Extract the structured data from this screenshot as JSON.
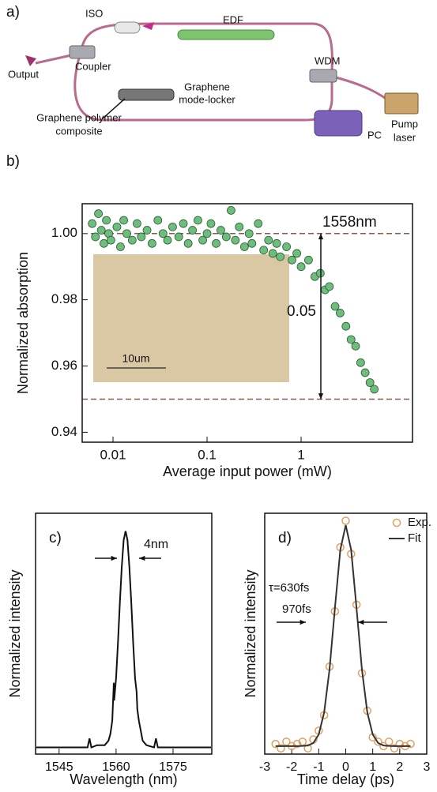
{
  "diagram": {
    "label": "a)",
    "components": [
      "ISO",
      "EDF",
      "Coupler",
      "WDM",
      "Output",
      "Graphene",
      "mode-locker",
      "Graphene polymer",
      "composite",
      "PC",
      "Pump",
      "laser"
    ]
  },
  "chart_data": [
    {
      "type": "scatter",
      "label": "b)",
      "x_label": "Average input power (mW)",
      "y_label": "Normalized absorption",
      "xscale": "log",
      "xlim": [
        0.0047,
        15.3
      ],
      "ylim": [
        0.937,
        1.009
      ],
      "xticks": [
        0.01,
        0.1,
        1
      ],
      "yticks": [
        0.94,
        0.96,
        0.98,
        {
          "value": 1,
          "label": "1.00"
        }
      ],
      "hlines": [
        1,
        0.95
      ],
      "annotations": [
        "1558nm",
        "0.05"
      ],
      "inset_scale": "10um",
      "series": [
        {
          "color": "#6dbd7c",
          "x": [
            0.006,
            0.0065,
            0.007,
            0.0075,
            0.008,
            0.0085,
            0.009,
            0.0095,
            0.011,
            0.012,
            0.013,
            0.014,
            0.016,
            0.018,
            0.02,
            0.023,
            0.026,
            0.03,
            0.034,
            0.038,
            0.043,
            0.05,
            0.056,
            0.063,
            0.07,
            0.08,
            0.09,
            0.1,
            0.11,
            0.125,
            0.14,
            0.16,
            0.18,
            0.2,
            0.22,
            0.25,
            0.28,
            0.3,
            0.35,
            0.4,
            0.45,
            0.5,
            0.55,
            0.6,
            0.7,
            0.8,
            0.9,
            1.0,
            1.2,
            1.4,
            1.6,
            1.8,
            2.0,
            2.3,
            2.6,
            3.0,
            3.4,
            3.8,
            4.3,
            4.8,
            5.4,
            6.0
          ],
          "values": [
            1.003,
            0.999,
            1.006,
            1.001,
            0.997,
            1.004,
            1.0,
            0.998,
            1.002,
            0.996,
            1.004,
            1.0,
            0.998,
            1.003,
            0.999,
            1.001,
            0.997,
            1.004,
            1.0,
            0.998,
            1.002,
            0.999,
            1.003,
            0.997,
            1.001,
            1.004,
            0.998,
            1.0,
            1.003,
            0.997,
            1.001,
            0.999,
            1.007,
            0.998,
            1.002,
            0.996,
            1.0,
            0.997,
            1.003,
            0.995,
            0.998,
            0.994,
            0.997,
            0.993,
            0.996,
            0.992,
            0.994,
            0.99,
            0.992,
            0.987,
            0.988,
            0.983,
            0.984,
            0.978,
            0.976,
            0.972,
            0.968,
            0.966,
            0.961,
            0.958,
            0.955,
            0.953
          ]
        }
      ]
    },
    {
      "type": "line",
      "label": "c)",
      "x_label": "Wavelength (nm)",
      "y_label": "Normalized intensity",
      "xlim": [
        1538.8,
        1585.2
      ],
      "ylim": [
        0,
        1.08
      ],
      "xticks": [
        1545,
        1560,
        1575
      ],
      "annotations": [
        "4nm"
      ],
      "series": [
        {
          "color": "#111111",
          "mode": "line",
          "x": [
            1539,
            1545,
            1550,
            1552.5,
            1553,
            1553.5,
            1555,
            1557,
            1558,
            1558.5,
            1559,
            1559.4,
            1559.5,
            1560,
            1560.5,
            1561,
            1561.5,
            1562,
            1562.5,
            1563,
            1563.5,
            1564,
            1564.5,
            1565,
            1565.4,
            1565.6,
            1566,
            1567,
            1568,
            1570,
            1570.5,
            1571,
            1575,
            1585
          ],
          "values": [
            0.03,
            0.03,
            0.03,
            0.03,
            0.07,
            0.03,
            0.04,
            0.04,
            0.06,
            0.09,
            0.15,
            0.32,
            0.24,
            0.34,
            0.5,
            0.68,
            0.84,
            0.96,
            1.0,
            0.96,
            0.84,
            0.68,
            0.5,
            0.34,
            0.28,
            0.2,
            0.15,
            0.06,
            0.04,
            0.03,
            0.07,
            0.03,
            0.03,
            0.03
          ]
        }
      ]
    },
    {
      "type": "line",
      "label": "d)",
      "x_label": "Time delay (ps)",
      "y_label": "Normalized intensity",
      "xlim": [
        -3,
        3
      ],
      "ylim": [
        -0.036,
        1.054
      ],
      "xticks": [
        -3,
        -2,
        -1,
        0,
        1,
        2,
        3
      ],
      "annotations": [
        "τ=630fs",
        "970fs"
      ],
      "legend": "upper right",
      "series": [
        {
          "name": "Exp.",
          "color": "#e0a060",
          "mode": "markers",
          "x": [
            -2.6,
            -2.4,
            -2.2,
            -2.0,
            -1.8,
            -1.6,
            -1.4,
            -1.2,
            -1.0,
            -0.8,
            -0.6,
            -0.4,
            -0.2,
            0,
            0.2,
            0.4,
            0.6,
            0.8,
            1.0,
            1.2,
            1.4,
            1.6,
            1.8,
            2.0,
            2.2,
            2.4
          ],
          "values": [
            0.01,
            -0.01,
            0.02,
            0.0,
            0.01,
            0.02,
            -0.01,
            0.03,
            0.07,
            0.14,
            0.36,
            0.61,
            0.9,
            1.02,
            0.87,
            0.64,
            0.33,
            0.16,
            0.04,
            0.02,
            0.0,
            0.02,
            -0.01,
            0.01,
            0.0,
            0.01
          ]
        },
        {
          "name": "Fit",
          "color": "#333333",
          "mode": "line",
          "x": [
            -2.6,
            -2.4,
            -2.2,
            -2.0,
            -1.8,
            -1.6,
            -1.4,
            -1.2,
            -1.0,
            -0.8,
            -0.6,
            -0.4,
            -0.2,
            0,
            0.2,
            0.4,
            0.6,
            0.8,
            1.0,
            1.2,
            1.4,
            1.6,
            1.8,
            2.0,
            2.2,
            2.4
          ],
          "values": [
            0,
            0,
            0,
            0,
            0,
            0.001,
            0.003,
            0.014,
            0.053,
            0.152,
            0.347,
            0.625,
            0.889,
            1,
            0.889,
            0.625,
            0.347,
            0.152,
            0.053,
            0.014,
            0.003,
            0.001,
            0,
            0,
            0,
            0
          ]
        }
      ]
    }
  ]
}
